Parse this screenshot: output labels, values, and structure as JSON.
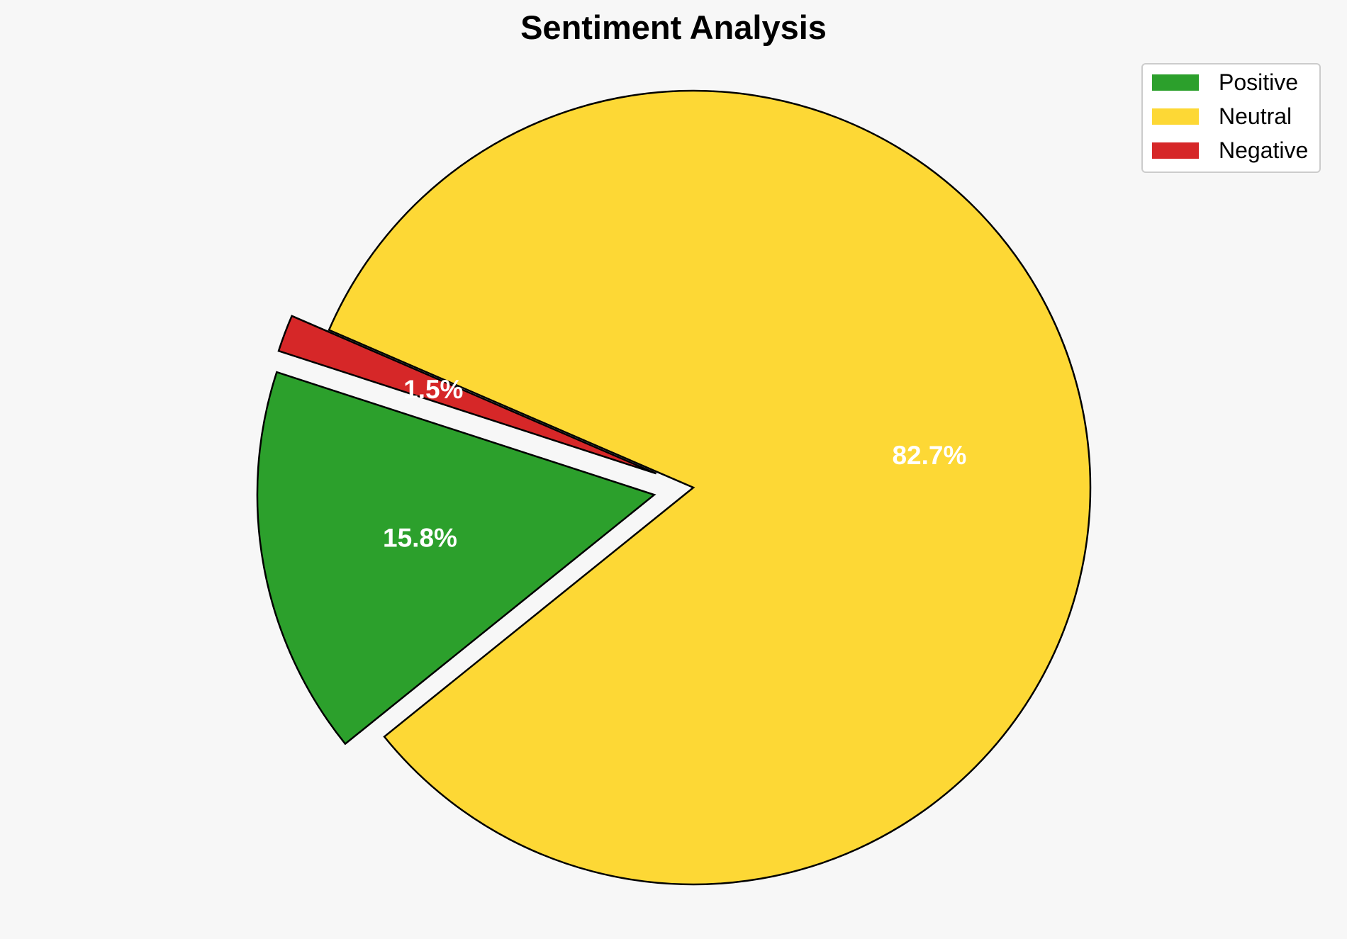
{
  "chart_data": {
    "type": "pie",
    "title": "Sentiment Analysis",
    "categories": [
      "Positive",
      "Neutral",
      "Negative"
    ],
    "values": [
      15.8,
      82.7,
      1.5
    ],
    "labels": [
      "15.8%",
      "82.7%",
      "1.5%"
    ],
    "colors": [
      "#2ca02c",
      "#fdd835",
      "#d62728"
    ],
    "exploded": [
      true,
      false,
      true
    ],
    "legend_position": "top-right"
  },
  "colors": {
    "background": "#f7f7f7",
    "edge": "#000000",
    "label_text": "#ffffff"
  }
}
